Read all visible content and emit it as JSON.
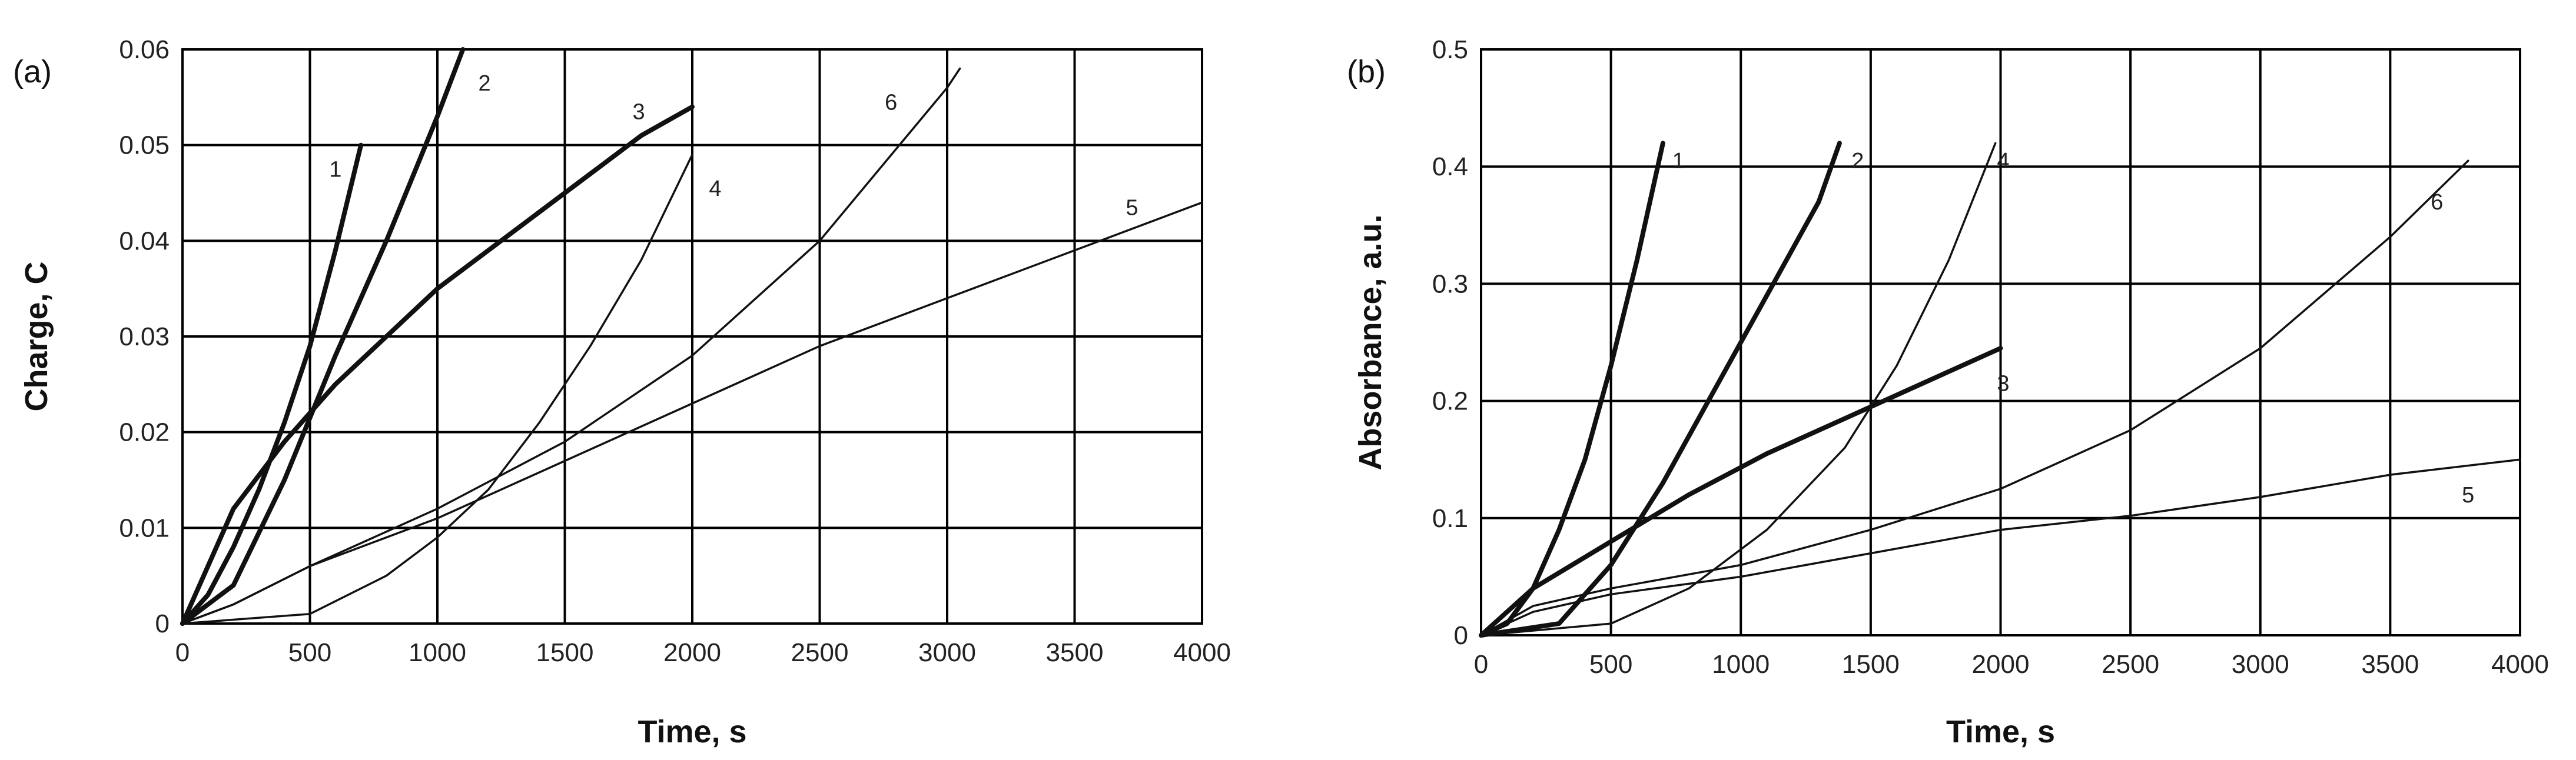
{
  "chart_data": [
    {
      "type": "line",
      "panel_label": "(a)",
      "xlabel": "Time, s",
      "ylabel": "Charge, C",
      "xlim": [
        0,
        4000
      ],
      "ylim": [
        0,
        0.06
      ],
      "x_ticks": [
        0,
        500,
        1000,
        1500,
        2000,
        2500,
        3000,
        3500,
        4000
      ],
      "x_tick_labels": [
        "0",
        "500",
        "1000",
        "1500",
        "2000",
        "2500",
        "3000",
        "3500",
        "4000"
      ],
      "y_ticks": [
        0,
        0.01,
        0.02,
        0.03,
        0.04,
        0.05,
        0.06
      ],
      "y_tick_labels": [
        "0",
        "0.01",
        "0.02",
        "0.03",
        "0.04",
        "0.05",
        "0.06"
      ],
      "grid": true,
      "series": [
        {
          "name": "1",
          "bold": true,
          "x": [
            0,
            100,
            200,
            300,
            400,
            500,
            600,
            700
          ],
          "y": [
            0,
            0.003,
            0.008,
            0.014,
            0.021,
            0.029,
            0.039,
            0.05
          ]
        },
        {
          "name": "2",
          "bold": true,
          "x": [
            0,
            200,
            400,
            600,
            800,
            1000,
            1100
          ],
          "y": [
            0,
            0.004,
            0.015,
            0.028,
            0.04,
            0.053,
            0.06
          ]
        },
        {
          "name": "3",
          "bold": true,
          "x": [
            0,
            200,
            400,
            600,
            800,
            1000,
            1200,
            1400,
            1600,
            1800,
            2000
          ],
          "y": [
            0,
            0.012,
            0.019,
            0.025,
            0.03,
            0.035,
            0.039,
            0.043,
            0.047,
            0.051,
            0.054
          ]
        },
        {
          "name": "4",
          "bold": false,
          "x": [
            0,
            500,
            800,
            1000,
            1200,
            1400,
            1600,
            1800,
            2000
          ],
          "y": [
            0,
            0.001,
            0.005,
            0.009,
            0.014,
            0.021,
            0.029,
            0.038,
            0.049
          ]
        },
        {
          "name": "5",
          "bold": false,
          "x": [
            0,
            200,
            500,
            1000,
            1500,
            2000,
            2500,
            3000,
            3500,
            4000
          ],
          "y": [
            0,
            0.002,
            0.006,
            0.011,
            0.017,
            0.023,
            0.029,
            0.034,
            0.039,
            0.044
          ]
        },
        {
          "name": "6",
          "bold": false,
          "x": [
            0,
            200,
            500,
            1000,
            1500,
            2000,
            2500,
            3000,
            3050
          ],
          "y": [
            0,
            0.002,
            0.006,
            0.012,
            0.019,
            0.028,
            0.04,
            0.056,
            0.058
          ]
        }
      ],
      "curve_labels": [
        {
          "text": "1",
          "x": 600,
          "y": 0.0475
        },
        {
          "text": "2",
          "x": 1185,
          "y": 0.0565
        },
        {
          "text": "3",
          "x": 1790,
          "y": 0.0535
        },
        {
          "text": "4",
          "x": 2090,
          "y": 0.0455
        },
        {
          "text": "5",
          "x": 3725,
          "y": 0.0435
        },
        {
          "text": "6",
          "x": 2780,
          "y": 0.0545
        }
      ]
    },
    {
      "type": "line",
      "panel_label": "(b)",
      "xlabel": "Time, s",
      "ylabel": "Absorbance, a.u.",
      "xlim": [
        0,
        4000
      ],
      "ylim": [
        0,
        0.5
      ],
      "x_ticks": [
        0,
        500,
        1000,
        1500,
        2000,
        2500,
        3000,
        3500,
        4000
      ],
      "x_tick_labels": [
        "0",
        "500",
        "1000",
        "1500",
        "2000",
        "2500",
        "3000",
        "3500",
        "4000"
      ],
      "y_ticks": [
        0,
        0.1,
        0.2,
        0.3,
        0.4,
        0.5
      ],
      "y_tick_labels": [
        "0",
        "0.1",
        "0.2",
        "0.3",
        "0.4",
        "0.5"
      ],
      "grid": true,
      "series": [
        {
          "name": "1",
          "bold": true,
          "x": [
            0,
            100,
            200,
            300,
            400,
            500,
            600,
            700
          ],
          "y": [
            0,
            0.01,
            0.04,
            0.09,
            0.15,
            0.23,
            0.32,
            0.42
          ]
        },
        {
          "name": "2",
          "bold": true,
          "x": [
            0,
            300,
            500,
            700,
            900,
            1100,
            1300,
            1380
          ],
          "y": [
            0,
            0.01,
            0.06,
            0.13,
            0.21,
            0.29,
            0.37,
            0.42
          ]
        },
        {
          "name": "3",
          "bold": true,
          "x": [
            0,
            200,
            500,
            800,
            1100,
            1400,
            1700,
            2000
          ],
          "y": [
            0,
            0.04,
            0.08,
            0.12,
            0.155,
            0.185,
            0.215,
            0.245
          ]
        },
        {
          "name": "4",
          "bold": false,
          "x": [
            0,
            500,
            800,
            1100,
            1400,
            1600,
            1800,
            1980
          ],
          "y": [
            0,
            0.01,
            0.04,
            0.09,
            0.16,
            0.23,
            0.32,
            0.42
          ]
        },
        {
          "name": "5",
          "bold": false,
          "x": [
            0,
            200,
            500,
            1000,
            1500,
            2000,
            2500,
            3000,
            3500,
            4000
          ],
          "y": [
            0,
            0.02,
            0.035,
            0.05,
            0.07,
            0.09,
            0.102,
            0.118,
            0.137,
            0.15
          ]
        },
        {
          "name": "6",
          "bold": false,
          "x": [
            0,
            200,
            500,
            1000,
            1500,
            2000,
            2500,
            3000,
            3500,
            3800
          ],
          "y": [
            0,
            0.025,
            0.04,
            0.06,
            0.09,
            0.125,
            0.175,
            0.245,
            0.34,
            0.405
          ]
        }
      ],
      "curve_labels": [
        {
          "text": "1",
          "x": 760,
          "y": 0.405
        },
        {
          "text": "2",
          "x": 1450,
          "y": 0.405
        },
        {
          "text": "3",
          "x": 2010,
          "y": 0.215
        },
        {
          "text": "4",
          "x": 2010,
          "y": 0.405
        },
        {
          "text": "5",
          "x": 3800,
          "y": 0.12
        },
        {
          "text": "6",
          "x": 3680,
          "y": 0.37
        }
      ]
    }
  ]
}
